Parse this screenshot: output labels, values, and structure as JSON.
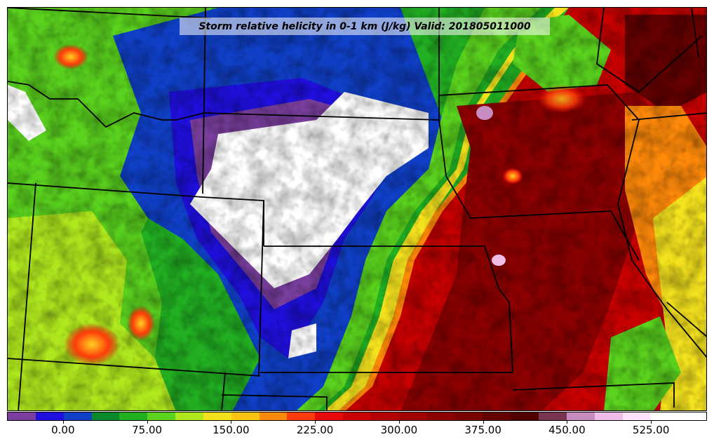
{
  "title": "Storm relative helicity in 0-1 km (J/kg) Valid: 201805011000",
  "variable": "Storm relative helicity in 0-1 km",
  "units": "J/kg",
  "valid_time": "201805011000",
  "colorbar": {
    "colors": [
      "#7a3f9e",
      "#2010e0",
      "#1040c8",
      "#0a8a2a",
      "#22b022",
      "#5ad21e",
      "#b0e81e",
      "#f4e21e",
      "#ffc414",
      "#ff8a0a",
      "#ff3c0a",
      "#e80a0a",
      "#c80000",
      "#b40000",
      "#a00000",
      "#8c0000",
      "#780000",
      "#640000",
      "#500000",
      "#7a3450",
      "#c88cc0",
      "#f0bce8",
      "#ffe2ff",
      "#ffffff",
      "#ffffff"
    ],
    "tick_labels": [
      "0.00",
      "75.00",
      "150.00",
      "225.00",
      "300.00",
      "375.00",
      "450.00",
      "525.00"
    ],
    "tick_values": [
      0,
      75,
      150,
      225,
      300,
      375,
      450,
      525
    ],
    "min": -50,
    "max": 575
  }
}
